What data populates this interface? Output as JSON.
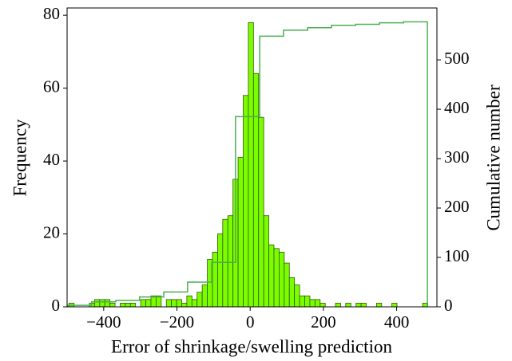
{
  "chart_data": {
    "type": "histogram",
    "xlabel": "Error of shrinkage/swelling prediction",
    "ylabel": "Frequency",
    "y2label": "Cumulative number",
    "bins": [
      -495,
      -481,
      -467,
      -453,
      -439,
      -425,
      -411,
      -397,
      -383,
      -369,
      -355,
      -341,
      -327,
      -313,
      -299,
      -285,
      -271,
      -257,
      -243,
      -229,
      -215,
      -201,
      -187,
      -173,
      -159,
      -145,
      -131,
      -117,
      -103,
      -89,
      -75,
      -61,
      -47,
      -33,
      -19,
      -5,
      9,
      23,
      37,
      51,
      65,
      79,
      93,
      107,
      121,
      135,
      149,
      163,
      177,
      191,
      205,
      219,
      233,
      247,
      261,
      275,
      289,
      303,
      317,
      331,
      345,
      359,
      373,
      387,
      401,
      415,
      429,
      443,
      457,
      471,
      485
    ],
    "values": [
      1,
      0,
      0,
      0,
      1,
      2,
      2,
      2,
      1,
      0,
      1,
      1,
      1,
      0,
      2,
      2,
      3,
      3,
      0,
      2,
      2,
      2,
      1,
      3,
      2,
      4,
      6,
      13,
      15,
      20,
      24,
      25,
      35,
      41,
      58,
      78,
      64,
      52,
      25,
      17,
      16,
      15,
      12,
      8,
      6,
      3,
      3,
      2,
      2,
      1,
      0,
      0,
      1,
      0,
      1,
      0,
      1,
      1,
      0,
      0,
      1,
      0,
      0,
      1,
      0,
      0,
      0,
      0,
      0,
      1
    ],
    "color": "#7cfc00",
    "edgecolor": "#2e5a00",
    "cumulative": {
      "axis": "y2",
      "color": "#4caf50",
      "bins": [
        -498,
        -433,
        -367,
        -302,
        -236,
        -171,
        -105,
        -40,
        26,
        91,
        157,
        222,
        288,
        353,
        419,
        484
      ],
      "values": [
        3,
        10,
        13,
        20,
        30,
        50,
        90,
        385,
        548,
        560,
        565,
        570,
        572,
        575,
        577
      ]
    },
    "xlim": [
      -500,
      510
    ],
    "xticks": [
      {
        "value": -400,
        "label": "−400"
      },
      {
        "value": -200,
        "label": "−200"
      },
      0,
      200,
      400
    ],
    "ylim": [
      0,
      82
    ],
    "yticks": [
      0,
      20,
      40,
      60,
      80
    ],
    "y2lim": [
      0,
      605
    ],
    "y2ticks": [
      0,
      100,
      200,
      300,
      400,
      500
    ]
  }
}
